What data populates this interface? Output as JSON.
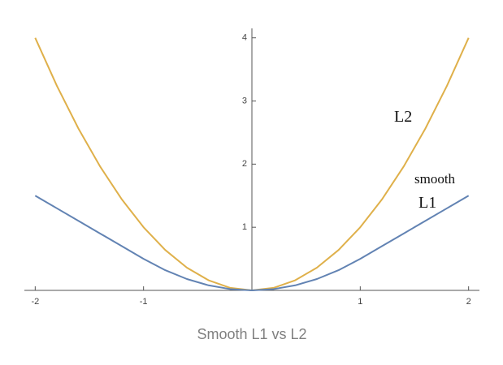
{
  "chart_data": {
    "type": "line",
    "title": "Smooth L1 vs L2",
    "x": [
      -2,
      -1.8,
      -1.6,
      -1.4,
      -1.2,
      -1,
      -0.8,
      -0.6,
      -0.4,
      -0.2,
      0,
      0.2,
      0.4,
      0.6,
      0.8,
      1,
      1.2,
      1.4,
      1.6,
      1.8,
      2
    ],
    "series": [
      {
        "color": "#dfb04a",
        "values": [
          4,
          3.24,
          2.56,
          1.96,
          1.44,
          1,
          0.64,
          0.36,
          0.16,
          0.04,
          0,
          0.04,
          0.16,
          0.36,
          0.64,
          1,
          1.44,
          1.96,
          2.56,
          3.24,
          4
        ]
      },
      {
        "color": "#6283b3",
        "values": [
          1.5,
          1.3,
          1.1,
          0.9,
          0.7,
          0.5,
          0.32,
          0.18,
          0.08,
          0.02,
          0,
          0.02,
          0.08,
          0.18,
          0.32,
          0.5,
          0.7,
          0.9,
          1.1,
          1.3,
          1.5
        ]
      }
    ],
    "annotations": [
      "L2",
      "smooth",
      "L1"
    ],
    "xlim": [
      -2.1,
      2.1
    ],
    "ylim": [
      0,
      4.15
    ],
    "xticks": [
      -2,
      -1,
      1,
      2
    ],
    "yticks": [
      1,
      2,
      3,
      4
    ]
  }
}
